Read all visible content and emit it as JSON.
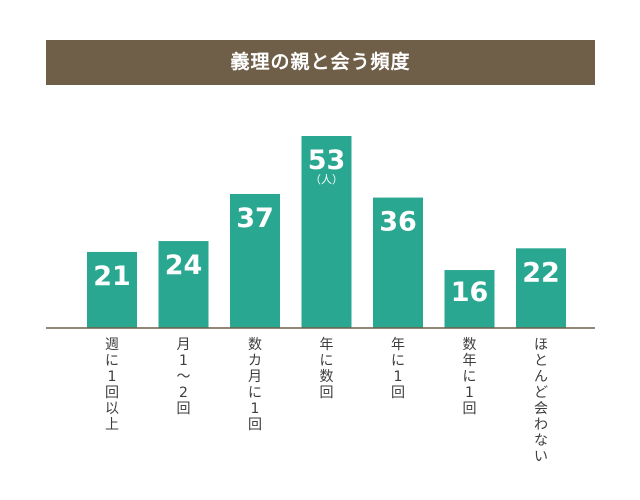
{
  "chart_data": {
    "type": "bar",
    "title": "義理の親と会う頻度",
    "categories": [
      "週に1回以上",
      "月1～2回",
      "数カ月に1回",
      "年に数回",
      "年に1回",
      "数年に1回",
      "ほとんど会わない"
    ],
    "values": [
      21,
      24,
      37,
      53,
      36,
      16,
      22
    ],
    "unit_label": "（人）",
    "ylim": [
      0,
      53
    ],
    "grid": false,
    "colors": {
      "bar": "#2aa791",
      "title_bg": "#6f5f48",
      "baseline": "#6f5f48",
      "label": "#3d3d3d"
    }
  }
}
